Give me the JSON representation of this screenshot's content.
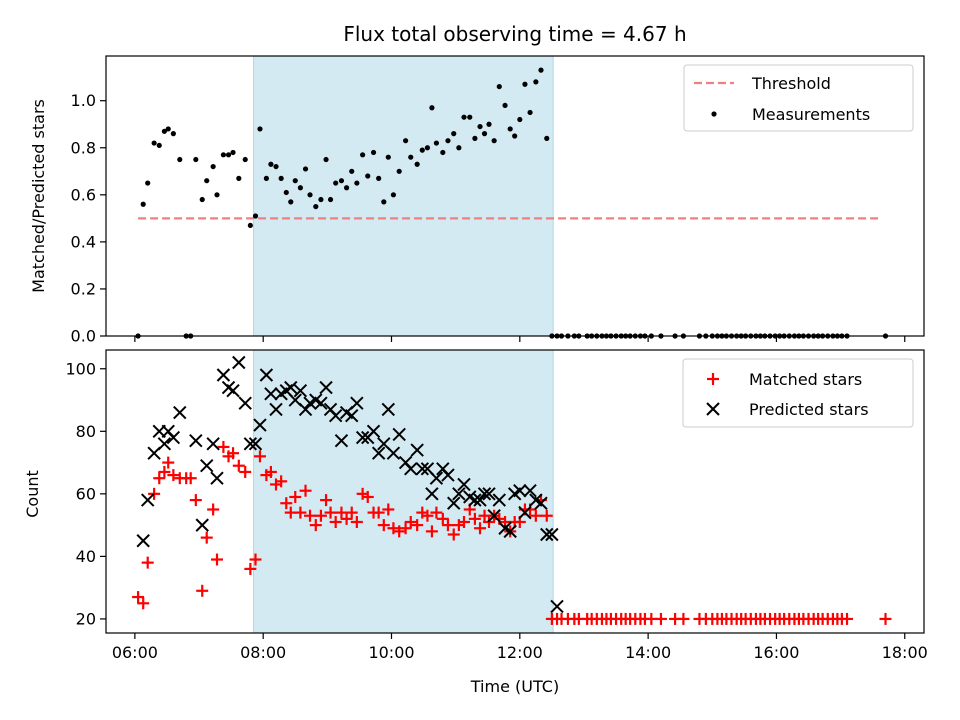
{
  "chart_data": [
    {
      "type": "scatter",
      "title": "Flux total observing time = 4.67 h",
      "xlabel": "",
      "ylabel": "Matched/Predicted stars",
      "xlim": [
        5.55,
        18.3
      ],
      "ylim": [
        0,
        1.19
      ],
      "yticks": [
        0.0,
        0.2,
        0.4,
        0.6,
        0.8,
        1.0
      ],
      "ytick_labels": [
        "0.0",
        "0.2",
        "0.4",
        "0.6",
        "0.8",
        "1.0"
      ],
      "xticks": [
        6,
        8,
        10,
        12,
        14,
        16,
        18
      ],
      "shaded_span": [
        7.85,
        12.52
      ],
      "shaded_color": "#add8e6",
      "legend": {
        "position": "top-right"
      },
      "grid": false,
      "threshold": {
        "name": "Threshold",
        "value": 0.5,
        "x_range": [
          6.05,
          17.6
        ],
        "color": "#f08080"
      },
      "series": [
        {
          "name": "Measurements",
          "color": "#000000",
          "x": [
            6.05,
            6.13,
            6.2,
            6.3,
            6.38,
            6.46,
            6.52,
            6.6,
            6.7,
            6.8,
            6.87,
            6.95,
            7.05,
            7.12,
            7.22,
            7.28,
            7.38,
            7.46,
            7.53,
            7.62,
            7.72,
            7.8,
            7.88,
            7.95,
            8.05,
            8.12,
            8.2,
            8.28,
            8.36,
            8.43,
            8.5,
            8.58,
            8.66,
            8.73,
            8.82,
            8.9,
            8.98,
            9.05,
            9.13,
            9.22,
            9.3,
            9.38,
            9.46,
            9.55,
            9.63,
            9.72,
            9.8,
            9.88,
            9.95,
            10.03,
            10.12,
            10.22,
            10.3,
            10.4,
            10.48,
            10.56,
            10.63,
            10.7,
            10.8,
            10.88,
            10.97,
            11.05,
            11.13,
            11.22,
            11.3,
            11.38,
            11.45,
            11.52,
            11.6,
            11.68,
            11.77,
            11.85,
            11.92,
            12.0,
            12.08,
            12.16,
            12.25,
            12.33,
            12.42,
            12.5,
            12.58,
            12.65,
            12.75,
            12.85,
            12.92,
            13.05,
            13.12,
            13.2,
            13.28,
            13.35,
            13.42,
            13.5,
            13.58,
            13.65,
            13.72,
            13.8,
            13.88,
            13.95,
            14.05,
            14.2,
            14.42,
            14.55,
            14.8,
            14.9,
            15.0,
            15.08,
            15.15,
            15.22,
            15.3,
            15.38,
            15.45,
            15.52,
            15.6,
            15.68,
            15.75,
            15.82,
            15.9,
            15.98,
            16.05,
            16.12,
            16.2,
            16.28,
            16.35,
            16.42,
            16.5,
            16.58,
            16.65,
            16.72,
            16.8,
            16.88,
            16.95,
            17.02,
            17.1,
            17.7
          ],
          "y": [
            0.0,
            0.56,
            0.65,
            0.82,
            0.81,
            0.87,
            0.88,
            0.86,
            0.75,
            0.0,
            0.0,
            0.75,
            0.58,
            0.66,
            0.72,
            0.6,
            0.77,
            0.77,
            0.78,
            0.67,
            0.75,
            0.47,
            0.51,
            0.88,
            0.67,
            0.73,
            0.72,
            0.67,
            0.61,
            0.57,
            0.66,
            0.63,
            0.71,
            0.6,
            0.55,
            0.58,
            0.75,
            0.58,
            0.65,
            0.66,
            0.63,
            0.7,
            0.65,
            0.77,
            0.68,
            0.78,
            0.67,
            0.57,
            0.76,
            0.6,
            0.7,
            0.83,
            0.76,
            0.73,
            0.79,
            0.8,
            0.97,
            0.82,
            0.78,
            0.83,
            0.86,
            0.8,
            0.93,
            0.93,
            0.84,
            0.89,
            0.86,
            0.9,
            0.83,
            1.06,
            0.98,
            0.88,
            0.85,
            0.92,
            1.07,
            0.95,
            1.08,
            1.13,
            0.84,
            0.0,
            0.0,
            0.0,
            0.0,
            0.0,
            0.0,
            0.0,
            0.0,
            0.0,
            0.0,
            0.0,
            0.0,
            0.0,
            0.0,
            0.0,
            0.0,
            0.0,
            0.0,
            0.0,
            0.0,
            0.0,
            0.0,
            0.0,
            0.0,
            0.0,
            0.0,
            0.0,
            0.0,
            0.0,
            0.0,
            0.0,
            0.0,
            0.0,
            0.0,
            0.0,
            0.0,
            0.0,
            0.0,
            0.0,
            0.0,
            0.0,
            0.0,
            0.0,
            0.0,
            0.0,
            0.0,
            0.0,
            0.0,
            0.0,
            0.0,
            0.0,
            0.0,
            0.0,
            0.0,
            0.0
          ]
        }
      ]
    },
    {
      "type": "scatter",
      "title": "",
      "xlabel": "Time (UTC)",
      "ylabel": "Count",
      "xlim": [
        5.55,
        18.3
      ],
      "ylim": [
        15.5,
        106
      ],
      "yticks": [
        20,
        40,
        60,
        80,
        100
      ],
      "ytick_labels": [
        "20",
        "40",
        "60",
        "80",
        "100"
      ],
      "xticks": [
        6,
        8,
        10,
        12,
        14,
        16,
        18
      ],
      "xtick_labels": [
        "06:00",
        "08:00",
        "10:00",
        "12:00",
        "14:00",
        "16:00",
        "18:00"
      ],
      "shaded_span": [
        7.85,
        12.52
      ],
      "shaded_color": "#add8e6",
      "legend": {
        "position": "top-right"
      },
      "grid": false,
      "series": [
        {
          "name": "Matched stars",
          "marker": "plus",
          "color": "#ff0000",
          "x": [
            6.05,
            6.13,
            6.2,
            6.3,
            6.38,
            6.46,
            6.52,
            6.6,
            6.7,
            6.8,
            6.87,
            6.95,
            7.05,
            7.12,
            7.22,
            7.28,
            7.38,
            7.46,
            7.53,
            7.62,
            7.72,
            7.8,
            7.88,
            7.95,
            8.05,
            8.12,
            8.2,
            8.28,
            8.36,
            8.43,
            8.5,
            8.58,
            8.66,
            8.73,
            8.82,
            8.9,
            8.98,
            9.05,
            9.13,
            9.22,
            9.3,
            9.38,
            9.46,
            9.55,
            9.63,
            9.72,
            9.8,
            9.88,
            9.95,
            10.03,
            10.12,
            10.22,
            10.3,
            10.4,
            10.48,
            10.56,
            10.63,
            10.7,
            10.8,
            10.88,
            10.97,
            11.05,
            11.13,
            11.22,
            11.3,
            11.38,
            11.45,
            11.52,
            11.6,
            11.68,
            11.77,
            11.85,
            11.92,
            12.0,
            12.08,
            12.16,
            12.25,
            12.33,
            12.42,
            12.5,
            12.58,
            12.65,
            12.75,
            12.85,
            12.92,
            13.05,
            13.12,
            13.2,
            13.28,
            13.35,
            13.42,
            13.5,
            13.58,
            13.65,
            13.72,
            13.8,
            13.88,
            13.95,
            14.05,
            14.2,
            14.42,
            14.55,
            14.8,
            14.9,
            15.0,
            15.08,
            15.15,
            15.22,
            15.3,
            15.38,
            15.45,
            15.52,
            15.6,
            15.68,
            15.75,
            15.82,
            15.9,
            15.98,
            16.05,
            16.12,
            16.2,
            16.28,
            16.35,
            16.42,
            16.5,
            16.58,
            16.65,
            16.72,
            16.8,
            16.88,
            16.95,
            17.02,
            17.1,
            17.7
          ],
          "y": [
            27,
            25,
            38,
            60,
            65,
            67,
            70,
            66,
            65,
            65,
            65,
            58,
            29,
            46,
            55,
            39,
            75,
            72,
            73,
            69,
            67,
            36,
            39,
            72,
            66,
            67,
            63,
            64,
            57,
            54,
            59,
            54,
            61,
            53,
            50,
            53,
            58,
            54,
            51,
            54,
            52,
            54,
            51,
            60,
            59,
            54,
            54,
            50,
            55,
            49,
            48,
            49,
            51,
            50,
            54,
            53,
            48,
            54,
            52,
            50,
            47,
            50,
            51,
            55,
            52,
            49,
            53,
            51,
            53,
            52,
            51,
            48,
            51,
            51,
            55,
            55,
            53,
            58,
            53,
            20,
            20,
            20,
            20,
            20,
            20,
            20,
            20,
            20,
            20,
            20,
            20,
            20,
            20,
            20,
            20,
            20,
            20,
            20,
            20,
            20,
            20,
            20,
            20,
            20,
            20,
            20,
            20,
            20,
            20,
            20,
            20,
            20,
            20,
            20,
            20,
            20,
            20,
            20,
            20,
            20,
            20,
            20,
            20,
            20,
            20,
            20,
            20,
            20,
            20,
            20,
            20,
            20,
            20,
            20
          ]
        },
        {
          "name": "Predicted stars",
          "marker": "x",
          "color": "#000000",
          "x": [
            6.13,
            6.2,
            6.3,
            6.38,
            6.46,
            6.52,
            6.6,
            6.7,
            6.95,
            7.05,
            7.12,
            7.22,
            7.28,
            7.38,
            7.46,
            7.53,
            7.62,
            7.72,
            7.8,
            7.88,
            7.95,
            8.05,
            8.12,
            8.2,
            8.28,
            8.36,
            8.43,
            8.5,
            8.58,
            8.66,
            8.73,
            8.82,
            8.9,
            8.98,
            9.05,
            9.13,
            9.22,
            9.3,
            9.38,
            9.46,
            9.55,
            9.63,
            9.72,
            9.8,
            9.88,
            9.95,
            10.03,
            10.12,
            10.22,
            10.3,
            10.4,
            10.48,
            10.56,
            10.63,
            10.7,
            10.8,
            10.88,
            10.97,
            11.05,
            11.13,
            11.22,
            11.3,
            11.38,
            11.45,
            11.52,
            11.6,
            11.68,
            11.77,
            11.85,
            11.92,
            12.0,
            12.08,
            12.16,
            12.25,
            12.33,
            12.42,
            12.5,
            12.58
          ],
          "y": [
            45,
            58,
            73,
            80,
            76,
            80,
            78,
            86,
            77,
            50,
            69,
            76,
            65,
            98,
            94,
            93,
            102,
            89,
            76,
            76,
            82,
            98,
            92,
            87,
            92,
            93,
            94,
            90,
            93,
            87,
            89,
            90,
            89,
            94,
            87,
            85,
            77,
            86,
            85,
            89,
            78,
            78,
            80,
            73,
            76,
            87,
            73,
            79,
            70,
            68,
            74,
            68,
            68,
            60,
            65,
            68,
            66,
            57,
            60,
            63,
            59,
            58,
            58,
            60,
            60,
            53,
            58,
            49,
            48,
            60,
            61,
            54,
            61,
            58,
            57,
            47,
            47,
            24
          ]
        }
      ]
    }
  ]
}
